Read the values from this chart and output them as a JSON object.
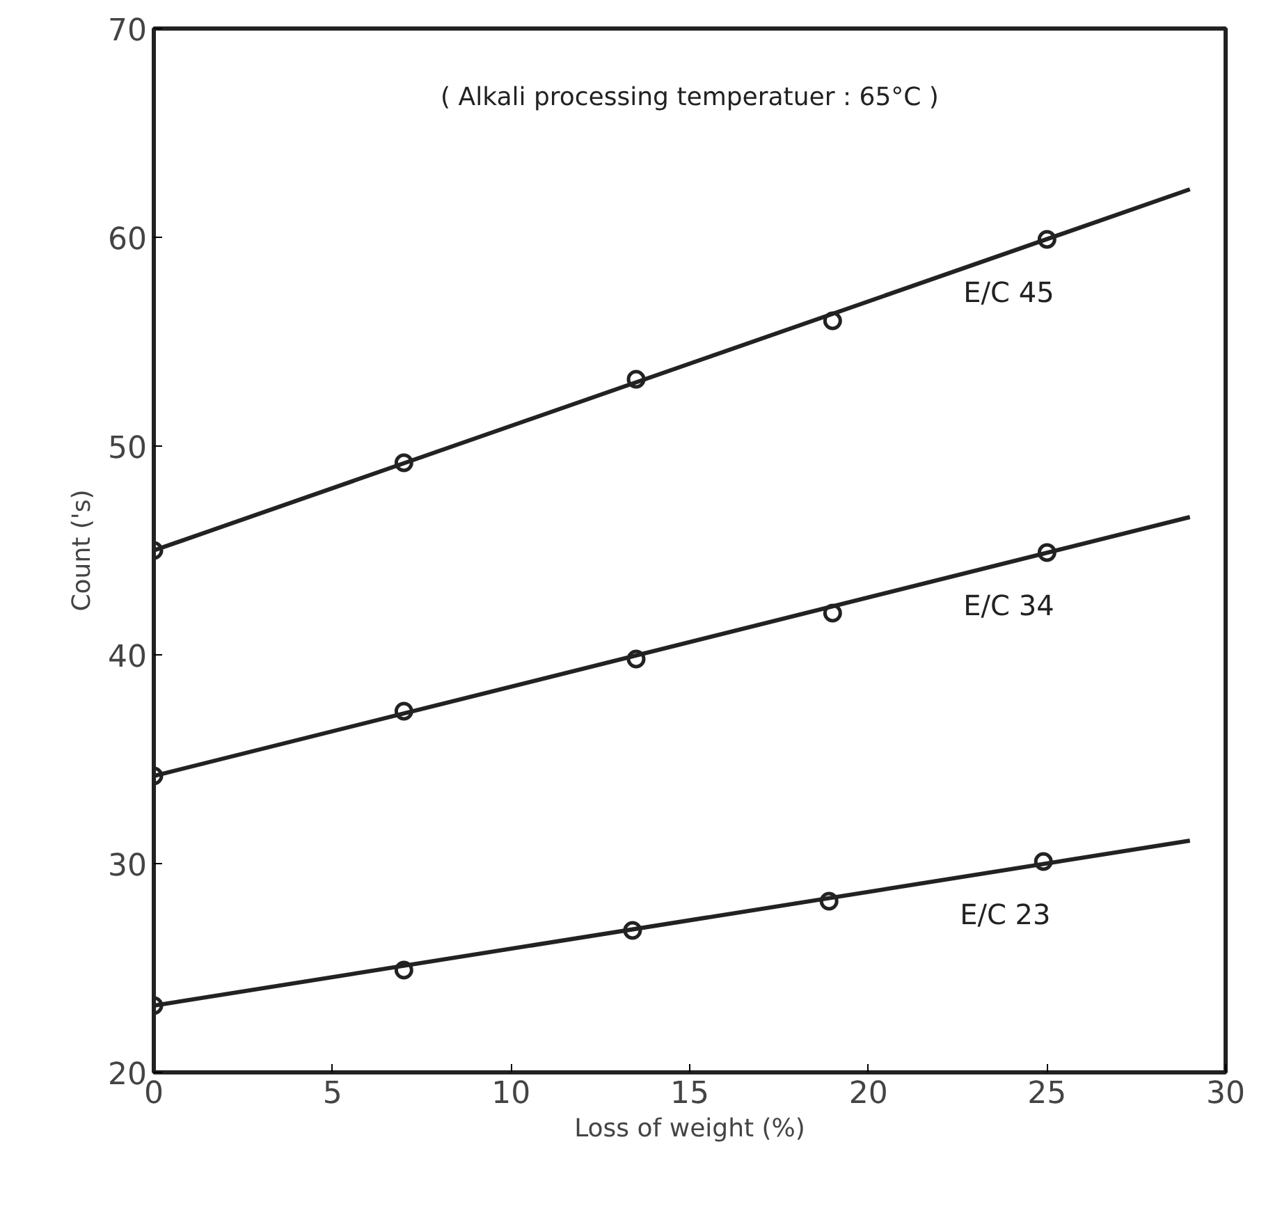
{
  "chart_data": {
    "type": "scatter",
    "xlabel": "Loss of weight (%)",
    "ylabel": "Count ('s)",
    "annotations": [
      "( Alkali processing temperatuer : 65°C )"
    ],
    "xlim": [
      0,
      30
    ],
    "ylim": [
      20,
      70
    ],
    "xticks": [
      0,
      5,
      10,
      15,
      20,
      25,
      30
    ],
    "yticks": [
      20,
      30,
      40,
      50,
      60,
      70
    ],
    "grid": false,
    "marker": "circle",
    "series": [
      {
        "name": "E/C 45",
        "color": "#222222",
        "x": [
          0,
          7,
          13.5,
          19,
          25
        ],
        "values": [
          45,
          49.2,
          53.2,
          56.0,
          59.9
        ]
      },
      {
        "name": "E/C 34",
        "color": "#222222",
        "x": [
          0,
          7,
          13.5,
          19,
          25
        ],
        "values": [
          34.2,
          37.3,
          39.8,
          42.0,
          44.9
        ]
      },
      {
        "name": "E/C 23",
        "color": "#222222",
        "x": [
          0,
          7,
          13.4,
          18.9,
          24.9
        ],
        "values": [
          23.2,
          24.9,
          26.8,
          28.2,
          30.1
        ]
      },
      {
        "type": "line",
        "marker": "none",
        "color": "#222222",
        "x": [
          0,
          29
        ],
        "values": [
          45,
          62.3
        ]
      },
      {
        "type": "line",
        "marker": "none",
        "color": "#222222",
        "x": [
          0,
          29
        ],
        "values": [
          34.2,
          46.6
        ]
      },
      {
        "type": "line",
        "marker": "none",
        "color": "#222222",
        "x": [
          0,
          29
        ],
        "values": [
          23.2,
          31.1
        ]
      }
    ]
  }
}
